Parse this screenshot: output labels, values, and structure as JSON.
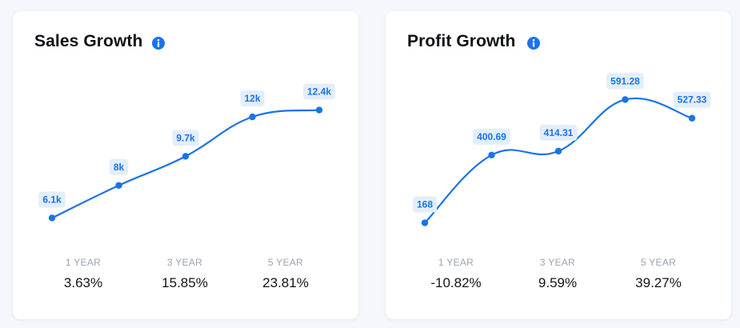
{
  "colors": {
    "accent": "#1a73e8",
    "label_bg": "#e3eefb",
    "page_bg": "#f4f7fc"
  },
  "chart_data": [
    {
      "type": "line",
      "title": "Sales Growth",
      "title_icon": "info-icon",
      "categories": [
        "",
        "",
        "",
        "",
        ""
      ],
      "values": [
        6.1,
        8,
        9.7,
        12,
        12.4
      ],
      "point_labels": [
        "6.1k",
        "8k",
        "9.7k",
        "12k",
        "12.4k"
      ],
      "ylim": [
        5,
        13.5
      ],
      "grid": false,
      "periods": [
        {
          "label": "1 YEAR",
          "value": "3.63%"
        },
        {
          "label": "3 YEAR",
          "value": "15.85%"
        },
        {
          "label": "5 YEAR",
          "value": "23.81%"
        }
      ]
    },
    {
      "type": "line",
      "title": "Profit Growth",
      "title_icon": "info-icon",
      "categories": [
        "",
        "",
        "",
        "",
        ""
      ],
      "values": [
        168,
        400.69,
        414.31,
        591.28,
        527.33
      ],
      "point_labels": [
        "168",
        "400.69",
        "414.31",
        "591.28",
        "527.33"
      ],
      "ylim": [
        120,
        620
      ],
      "grid": false,
      "periods": [
        {
          "label": "1 YEAR",
          "value": "-10.82%"
        },
        {
          "label": "3 YEAR",
          "value": "9.59%"
        },
        {
          "label": "5 YEAR",
          "value": "39.27%"
        }
      ]
    }
  ]
}
